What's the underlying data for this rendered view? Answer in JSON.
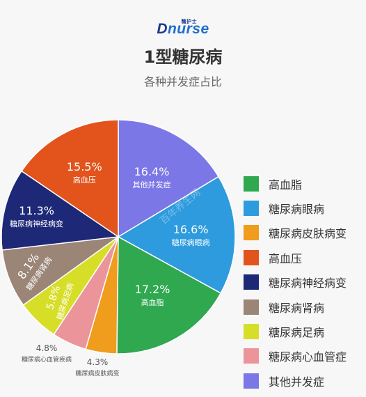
{
  "logo": {
    "part1": "D",
    "part2": "nurse",
    "small": "糖护士"
  },
  "watermark": "百年养生网",
  "chart_data": {
    "type": "pie",
    "title": "1型糖尿病",
    "subtitle": "各种并发症占比",
    "slices": [
      {
        "label": "其他并发症",
        "value": 16.4,
        "value_label": "16.4%",
        "color": "#7b77e6"
      },
      {
        "label": "糖尿病眼病",
        "value": 16.6,
        "value_label": "16.6%",
        "color": "#2d9bde"
      },
      {
        "label": "高血脂",
        "value": 17.2,
        "value_label": "17.2%",
        "color": "#2fa84f"
      },
      {
        "label": "糖尿病皮肤病变",
        "value": 4.3,
        "value_label": "4.3%",
        "color": "#f09c1c"
      },
      {
        "label": "糖尿病心血管疾病",
        "value": 4.8,
        "value_label": "4.8%",
        "color": "#eb959b"
      },
      {
        "label": "糖尿病足病",
        "value": 5.8,
        "value_label": "5.8%",
        "color": "#d7de28"
      },
      {
        "label": "糖尿病肾病",
        "value": 8.1,
        "value_label": "8.1%",
        "color": "#9a8577"
      },
      {
        "label": "糖尿病神经病变",
        "value": 11.3,
        "value_label": "11.3%",
        "color": "#1d2877"
      },
      {
        "label": "高血压",
        "value": 15.5,
        "value_label": "15.5%",
        "color": "#e2541c"
      }
    ],
    "legend": [
      {
        "label": "高血脂",
        "color": "#2fa84f"
      },
      {
        "label": "糖尿病眼病",
        "color": "#2d9bde"
      },
      {
        "label": "糖尿病皮肤病变",
        "color": "#f09c1c"
      },
      {
        "label": "高血压",
        "color": "#e2541c"
      },
      {
        "label": "糖尿病神经病变",
        "color": "#1d2877"
      },
      {
        "label": "糖尿病肾病",
        "color": "#9a8577"
      },
      {
        "label": "糖尿病足病",
        "color": "#d7de28"
      },
      {
        "label": "糖尿病心血管症",
        "color": "#eb959b"
      },
      {
        "label": "其他并发症",
        "color": "#7b77e6"
      }
    ],
    "legend_position": "right"
  }
}
